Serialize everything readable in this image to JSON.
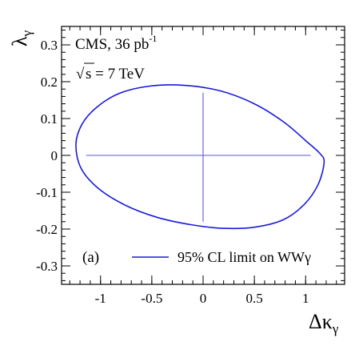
{
  "chart_data": {
    "type": "line",
    "xlabel": "Δκ",
    "xlabel_sub": "γ",
    "ylabel": "λ",
    "ylabel_sub": "γ",
    "xlim": [
      -1.38,
      1.38
    ],
    "ylim": [
      -0.35,
      0.35
    ],
    "grid": false,
    "x_ticks": [
      -1,
      -0.5,
      0,
      0.5,
      1
    ],
    "x_tick_labels": [
      "-1",
      "-0.5",
      "0",
      "0.5",
      "1"
    ],
    "y_ticks": [
      -0.3,
      -0.2,
      -0.1,
      0,
      0.1,
      0.2,
      0.3
    ],
    "y_tick_labels": [
      "-0.3",
      "-0.2",
      "-0.1",
      "0",
      "0.1",
      "0.2",
      "0.3"
    ],
    "annotations": {
      "experiment": "CMS, 36 pb",
      "experiment_sup": "-1",
      "energy_sqrt": "√",
      "energy": "s = 7 TeV",
      "panel": "(a)"
    },
    "legend": {
      "placement": "bottom-right",
      "label": "95% CL limit on WWγ"
    },
    "series": [
      {
        "name": "95% CL limit on WWγ",
        "color": "#1a1adc",
        "x": [
          1.18,
          1.12,
          0.98,
          0.78,
          0.5,
          0.2,
          -0.12,
          -0.45,
          -0.76,
          -1.02,
          -1.19,
          -1.24,
          -1.18,
          -1.04,
          -0.82,
          -0.52,
          -0.18,
          0.17,
          0.5,
          0.79,
          1.0,
          1.14,
          1.18
        ],
        "y": [
          -0.02,
          -0.08,
          -0.135,
          -0.175,
          -0.195,
          -0.198,
          -0.188,
          -0.168,
          -0.135,
          -0.09,
          -0.035,
          0.03,
          0.085,
          0.13,
          0.168,
          0.188,
          0.19,
          0.175,
          0.14,
          0.09,
          0.04,
          0.005,
          -0.02
        ]
      }
    ],
    "reference_lines": {
      "color": "#5a5ad8",
      "horizontal": {
        "y": 0,
        "x_from": -1.14,
        "x_to": 1.05
      },
      "vertical": {
        "x": 0,
        "y_from": -0.18,
        "y_to": 0.17
      }
    }
  }
}
